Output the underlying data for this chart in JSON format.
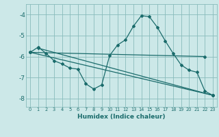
{
  "xlabel": "Humidex (Indice chaleur)",
  "bg_color": "#cce8e8",
  "grid_color": "#88bbbb",
  "line_color": "#1a6b6b",
  "xlim": [
    -0.5,
    23.5
  ],
  "ylim": [
    -8.4,
    -3.5
  ],
  "yticks": [
    -8,
    -7,
    -6,
    -5,
    -4
  ],
  "xticks": [
    0,
    1,
    2,
    3,
    4,
    5,
    6,
    7,
    8,
    9,
    10,
    11,
    12,
    13,
    14,
    15,
    16,
    17,
    18,
    19,
    20,
    21,
    22,
    23
  ],
  "series": [
    {
      "x": [
        0,
        1,
        2,
        3,
        4,
        5,
        6,
        7,
        8,
        9,
        10,
        11,
        12,
        13,
        14,
        15,
        16,
        17,
        18,
        19,
        20,
        21,
        22,
        23
      ],
      "y": [
        -5.8,
        -5.55,
        -5.85,
        -6.2,
        -6.35,
        -6.55,
        -6.6,
        -7.3,
        -7.55,
        -7.35,
        -5.95,
        -5.45,
        -5.2,
        -4.55,
        -4.05,
        -4.1,
        -4.6,
        -5.25,
        -5.85,
        -6.4,
        -6.65,
        -6.75,
        -7.65,
        -7.85
      ]
    },
    {
      "x": [
        0,
        22
      ],
      "y": [
        -5.8,
        -6.0
      ]
    },
    {
      "x": [
        0,
        23
      ],
      "y": [
        -5.8,
        -7.85
      ]
    },
    {
      "x": [
        1,
        23
      ],
      "y": [
        -5.6,
        -7.85
      ]
    }
  ]
}
